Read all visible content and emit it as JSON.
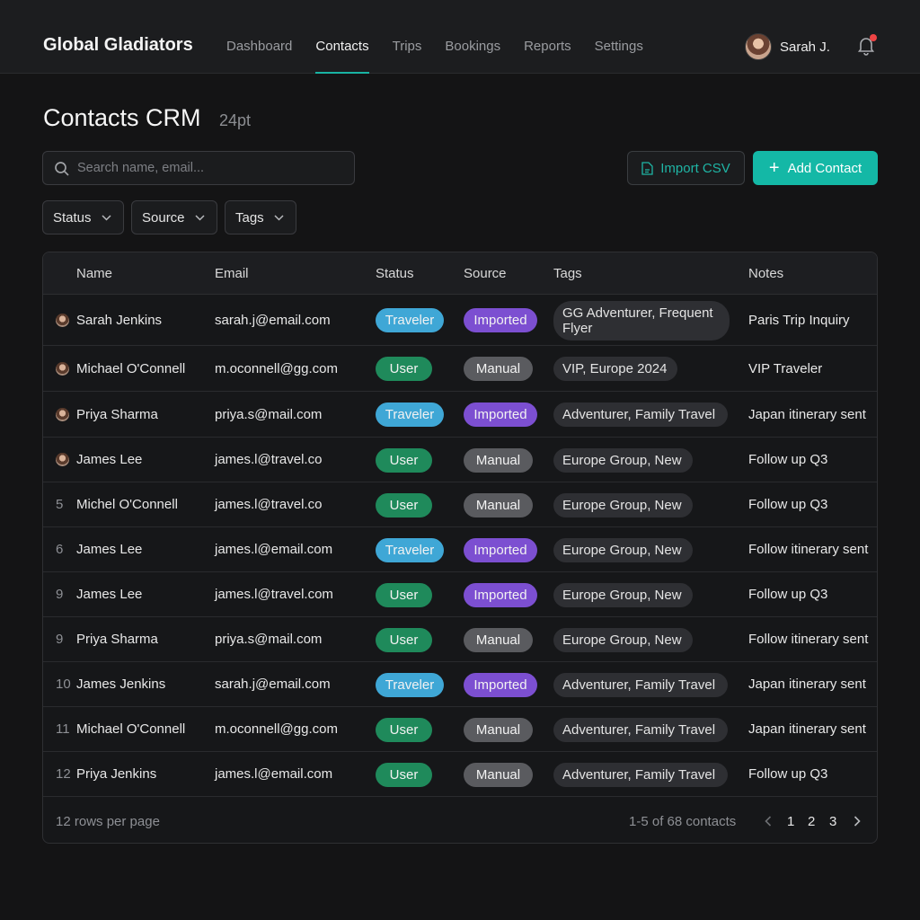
{
  "app": {
    "brand": "Global Gladiators"
  },
  "nav": {
    "items": [
      {
        "label": "Dashboard",
        "active": false
      },
      {
        "label": "Contacts",
        "active": true
      },
      {
        "label": "Trips",
        "active": false
      },
      {
        "label": "Bookings",
        "active": false
      },
      {
        "label": "Reports",
        "active": false
      },
      {
        "label": "Settings",
        "active": false
      }
    ]
  },
  "user": {
    "name": "Sarah J.",
    "has_notification": true
  },
  "page": {
    "title": "Contacts CRM",
    "subtitle": "24pt"
  },
  "search": {
    "placeholder": "Search name, email..."
  },
  "actions": {
    "import_label": "Import CSV",
    "add_label": "Add Contact"
  },
  "filters": [
    {
      "label": "Status"
    },
    {
      "label": "Source"
    },
    {
      "label": "Tags"
    }
  ],
  "table": {
    "columns": [
      "Name",
      "Email",
      "Status",
      "Source",
      "Tags",
      "Notes"
    ],
    "rows": [
      {
        "marker": "avatar",
        "name": "Sarah Jenkins",
        "email": "sarah.j@email.com",
        "status": "Traveler",
        "source": "Imported",
        "tags": "GG Adventurer, Frequent Flyer",
        "notes": "Paris Trip Inquiry"
      },
      {
        "marker": "avatar",
        "name": "Michael O'Connell",
        "email": "m.oconnell@gg.com",
        "status": "User",
        "source": "Manual",
        "tags": "VIP, Europe 2024",
        "notes": "VIP Traveler"
      },
      {
        "marker": "avatar",
        "name": "Priya Sharma",
        "email": "priya.s@mail.com",
        "status": "Traveler",
        "source": "Imported",
        "tags": "Adventurer, Family Travel",
        "notes": "Japan itinerary sent"
      },
      {
        "marker": "avatar",
        "name": "James Lee",
        "email": "james.l@travel.co",
        "status": "User",
        "source": "Manual",
        "tags": "Europe Group, New",
        "notes": "Follow up Q3"
      },
      {
        "marker": "5",
        "name": "Michel O'Connell",
        "email": "james.l@travel.co",
        "status": "User",
        "source": "Manual",
        "tags": "Europe Group, New",
        "notes": "Follow up Q3"
      },
      {
        "marker": "6",
        "name": "James Lee",
        "email": "james.l@email.com",
        "status": "Traveler",
        "source": "Imported",
        "tags": "Europe Group, New",
        "notes": "Follow itinerary sent"
      },
      {
        "marker": "9",
        "name": "James Lee",
        "email": "james.l@travel.com",
        "status": "User",
        "source": "Imported",
        "tags": "Europe Group, New",
        "notes": "Follow up Q3"
      },
      {
        "marker": "9",
        "name": "Priya Sharma",
        "email": "priya.s@mail.com",
        "status": "User",
        "source": "Manual",
        "tags": "Europe Group, New",
        "notes": "Follow itinerary sent"
      },
      {
        "marker": "10",
        "name": "James Jenkins",
        "email": "sarah.j@email.com",
        "status": "Traveler",
        "source": "Imported",
        "tags": "Adventurer, Family Travel",
        "notes": "Japan itinerary sent"
      },
      {
        "marker": "11",
        "name": "Michael O'Connell",
        "email": "m.oconnell@gg.com",
        "status": "User",
        "source": "Manual",
        "tags": "Adventurer, Family Travel",
        "notes": "Japan itinerary sent"
      },
      {
        "marker": "12",
        "name": "Priya  Jenkins",
        "email": "james.l@email.com",
        "status": "User",
        "source": "Manual",
        "tags": "Adventurer, Family Travel",
        "notes": "Follow up Q3"
      }
    ]
  },
  "footer": {
    "rows_per_page": "12 rows per page",
    "range": "1-5 of 68 contacts",
    "pages": [
      "1",
      "2",
      "3"
    ]
  },
  "colors": {
    "accent": "#14b8a6",
    "status_traveler": "#3fa7d6",
    "status_user": "#1f8a5b",
    "source_imported": "#7c4fd1",
    "source_manual": "#5a5b5f"
  }
}
